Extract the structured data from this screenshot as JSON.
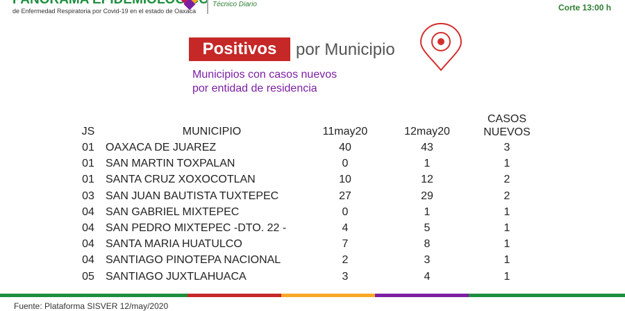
{
  "header": {
    "brand": "PANORAMA EPIDEMIOLOGICO",
    "brand_sub": "de Enfermedad Respiratoria por Covid-19 en el estado de Oaxaca",
    "bulletin": "Técnico Diario",
    "cutoff": "Corte 13:00 h"
  },
  "title": {
    "highlight": "Positivos",
    "rest": "por Municipio"
  },
  "subtitle": [
    "Municipios con casos nuevos",
    "por entidad de residencia"
  ],
  "table": {
    "columns": [
      "JS",
      "MUNICIPIO",
      "11may20",
      "12may20",
      "CASOS NUEVOS"
    ],
    "rows": [
      [
        "01",
        "OAXACA DE JUAREZ",
        40,
        43,
        3
      ],
      [
        "01",
        "SAN MARTIN TOXPALAN",
        0,
        1,
        1
      ],
      [
        "01",
        "SANTA CRUZ XOXOCOTLAN",
        10,
        12,
        2
      ],
      [
        "03",
        "SAN JUAN BAUTISTA TUXTEPEC",
        27,
        29,
        2
      ],
      [
        "04",
        "SAN GABRIEL MIXTEPEC",
        0,
        1,
        1
      ],
      [
        "04",
        "SAN PEDRO MIXTEPEC -DTO. 22 -",
        4,
        5,
        1
      ],
      [
        "04",
        "SANTA MARIA HUATULCO",
        7,
        8,
        1
      ],
      [
        "04",
        "SANTIAGO PINOTEPA NACIONAL",
        2,
        3,
        1
      ],
      [
        "05",
        "SANTIAGO JUXTLAHUACA",
        3,
        4,
        1
      ]
    ]
  },
  "footer": {
    "source": "Fuente: Plataforma SISVER 12/may/2020"
  }
}
